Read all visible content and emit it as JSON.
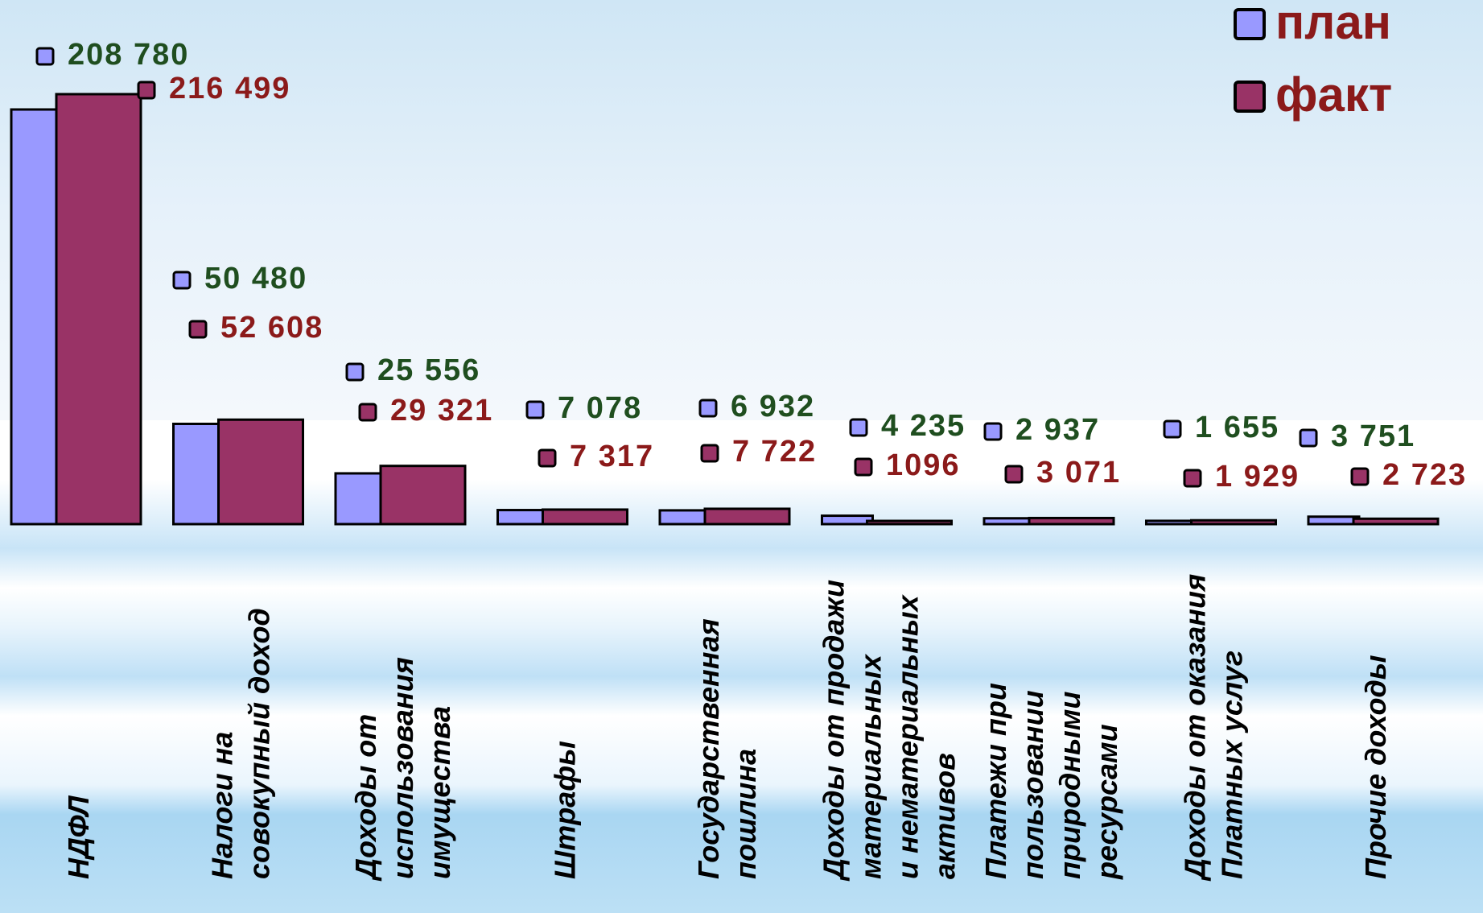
{
  "chart_data": {
    "type": "bar",
    "title": "",
    "xlabel": "",
    "ylabel": "",
    "ylim": [
      0,
      240000
    ],
    "grid": false,
    "legend_position": "top-right",
    "categories": [
      "НДФЛ",
      "Налоги  на совокупный доход",
      "Доходы от использования имущества",
      "Штрафы",
      "Государственная пошлина",
      "Доходы от продажи материальных и нематериальных активов",
      "Платежи при пользовании природными ресурсами",
      "Доходы от оказания Платных услуг",
      "Прочие доходы"
    ],
    "category_lines": [
      [
        "НДФЛ"
      ],
      [
        "Налоги  на",
        "совокупный доход"
      ],
      [
        "Доходы от",
        "использования",
        "имущества"
      ],
      [
        "Штрафы"
      ],
      [
        "Государственная",
        "пошлина"
      ],
      [
        "Доходы от продажи",
        "материальных",
        "и нематериальных",
        "активов"
      ],
      [
        "Платежи при",
        "пользовании",
        "природными",
        "ресурсами"
      ],
      [
        "Доходы от оказания",
        "Платных услуг"
      ],
      [
        "Прочие доходы"
      ]
    ],
    "series": [
      {
        "name": "план",
        "color": "#9999FF",
        "label_color": "#1F4E1F",
        "values": [
          208780,
          50480,
          25556,
          7078,
          6932,
          4235,
          2937,
          1655,
          3751
        ],
        "labels": [
          "208 780",
          "50 480",
          "25 556",
          "7 078",
          "6 932",
          "4 235",
          "2 937",
          "1 655",
          "3 751"
        ]
      },
      {
        "name": "факт",
        "color": "#993366",
        "label_color": "#8B1A1A",
        "values": [
          216499,
          52608,
          29321,
          7317,
          7722,
          1096,
          3071,
          1929,
          2723
        ],
        "labels": [
          "216 499",
          "52 608",
          "29 321",
          "7 317",
          "7 722",
          "1096",
          "3 071",
          "1 929",
          "2 723"
        ]
      }
    ]
  }
}
